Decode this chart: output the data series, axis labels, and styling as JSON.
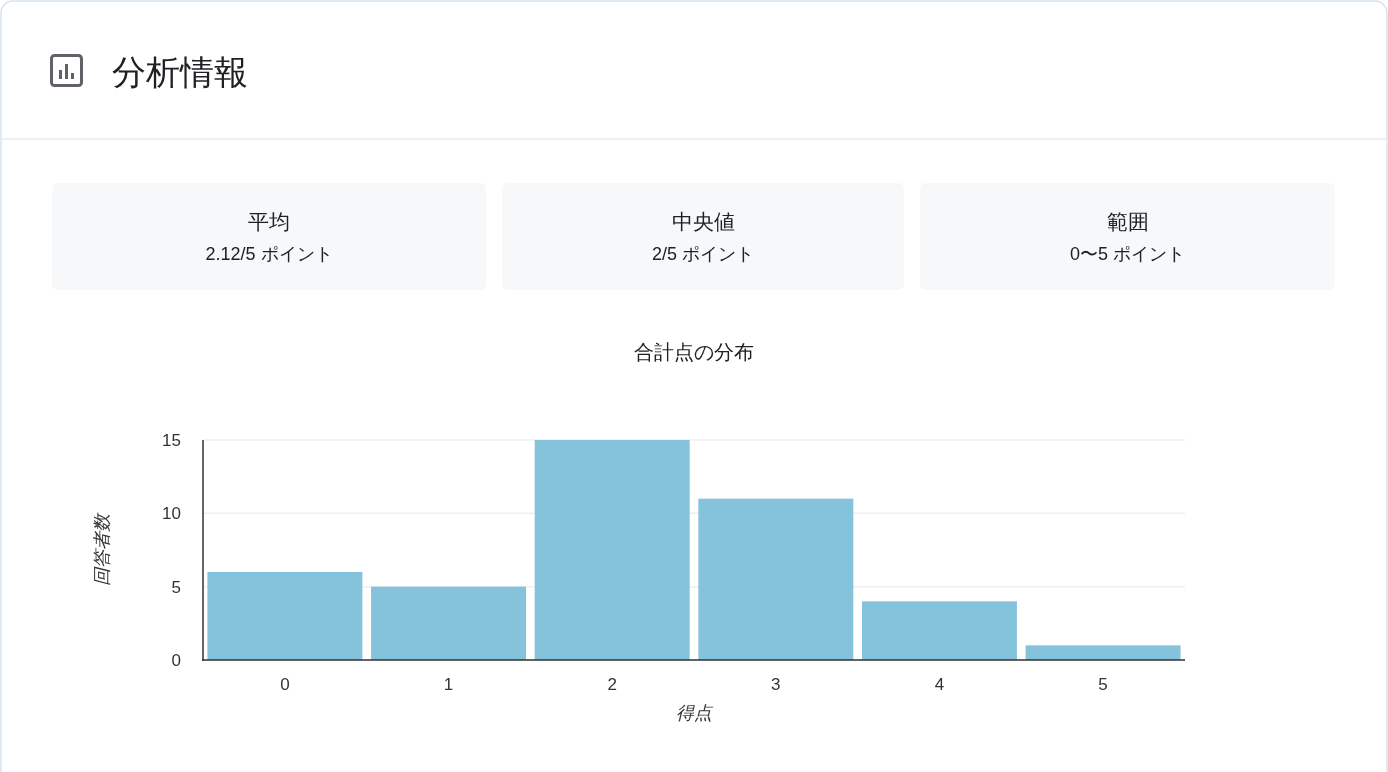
{
  "chart_data": [
    {
      "type": "other",
      "title": "分析情報",
      "annotations": [
        "平均",
        "2.12/5 ポイント",
        "中央値",
        "2/5 ポイント",
        "範囲",
        "0〜5 ポイント"
      ]
    },
    {
      "type": "bar",
      "title": "合計点の分布",
      "xlabel": "得点",
      "ylabel": "回答者数",
      "categories": [
        "0",
        "1",
        "2",
        "3",
        "4",
        "5"
      ],
      "values": [
        6,
        5,
        15,
        11,
        4,
        1
      ],
      "color": "#85c3dc",
      "ylim": [
        0,
        15
      ],
      "yticks": [
        0,
        5,
        10,
        15
      ],
      "grid": "y"
    }
  ]
}
